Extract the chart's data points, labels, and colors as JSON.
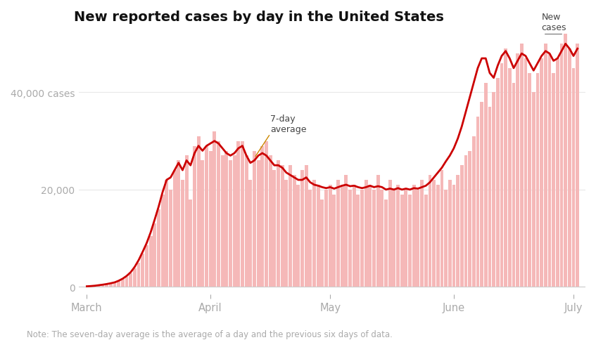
{
  "title": "New reported cases by day in the United States",
  "note": "Note: The seven-day average is the average of a day and the previous six days of data.",
  "yticks": [
    0,
    20000,
    40000
  ],
  "xtick_labels": [
    "March",
    "April",
    "May",
    "June",
    "July"
  ],
  "bar_color": "#f5b8b8",
  "line_color": "#cc0000",
  "background_color": "#ffffff",
  "title_fontsize": 14,
  "annotation_7day": "7-day\naverage",
  "annotation_new": "New\ncases",
  "ylim_max": 52000,
  "daily_cases": [
    100,
    150,
    200,
    300,
    400,
    500,
    700,
    900,
    1200,
    1600,
    2100,
    2800,
    3800,
    5000,
    6800,
    8500,
    10500,
    13000,
    16000,
    19000,
    22000,
    20000,
    24000,
    26000,
    22000,
    27000,
    18000,
    29000,
    31000,
    26000,
    29000,
    28000,
    32000,
    30000,
    27000,
    28000,
    26000,
    27000,
    30000,
    30000,
    27000,
    22000,
    28000,
    26000,
    29000,
    30000,
    27000,
    24000,
    26000,
    25000,
    22000,
    25000,
    23000,
    21000,
    24000,
    25000,
    20000,
    22000,
    21000,
    18000,
    20000,
    21000,
    19000,
    22000,
    21000,
    23000,
    20000,
    21000,
    19000,
    20000,
    22000,
    21000,
    20000,
    23000,
    20000,
    18000,
    22000,
    20000,
    21000,
    19000,
    20000,
    19000,
    21000,
    20000,
    22000,
    19000,
    23000,
    22000,
    21000,
    24000,
    20000,
    22000,
    21000,
    23000,
    25000,
    27000,
    28000,
    31000,
    35000,
    38000,
    42000,
    37000,
    40000,
    43000,
    46000,
    49000,
    45000,
    42000,
    48000,
    50000,
    47000,
    44000,
    40000,
    44000,
    47000,
    50000,
    48000,
    44000,
    47000,
    50000,
    52000,
    49000,
    45000,
    50000
  ],
  "avg7_cases": [
    100,
    150,
    220,
    330,
    440,
    570,
    730,
    920,
    1250,
    1680,
    2250,
    3000,
    4100,
    5500,
    7200,
    9000,
    11200,
    13800,
    16500,
    19500,
    22000,
    22500,
    24000,
    25500,
    24000,
    26000,
    25000,
    27500,
    29000,
    28000,
    29000,
    29500,
    30000,
    29500,
    28500,
    27500,
    27000,
    27500,
    28500,
    29000,
    27000,
    25500,
    26000,
    27000,
    27500,
    27000,
    26000,
    25000,
    25000,
    24500,
    23500,
    23000,
    22500,
    22000,
    22000,
    22500,
    21500,
    21000,
    20800,
    20500,
    20300,
    20500,
    20200,
    20500,
    20800,
    21000,
    20700,
    20800,
    20500,
    20300,
    20500,
    20800,
    20500,
    20700,
    20500,
    20000,
    20200,
    20000,
    20300,
    20000,
    20200,
    20000,
    20300,
    20200,
    20500,
    20800,
    21500,
    22500,
    23500,
    24500,
    25800,
    27000,
    28500,
    30500,
    33000,
    36000,
    39000,
    42000,
    45000,
    47000,
    47000,
    44000,
    43000,
    45500,
    47500,
    48500,
    47000,
    45000,
    46500,
    48000,
    47500,
    46000,
    44500,
    46000,
    47500,
    48500,
    48000,
    46500,
    47000,
    48500,
    50000,
    49000,
    47500,
    49000
  ],
  "month_starts": [
    0,
    31,
    61,
    92,
    122
  ],
  "n_days": 124
}
